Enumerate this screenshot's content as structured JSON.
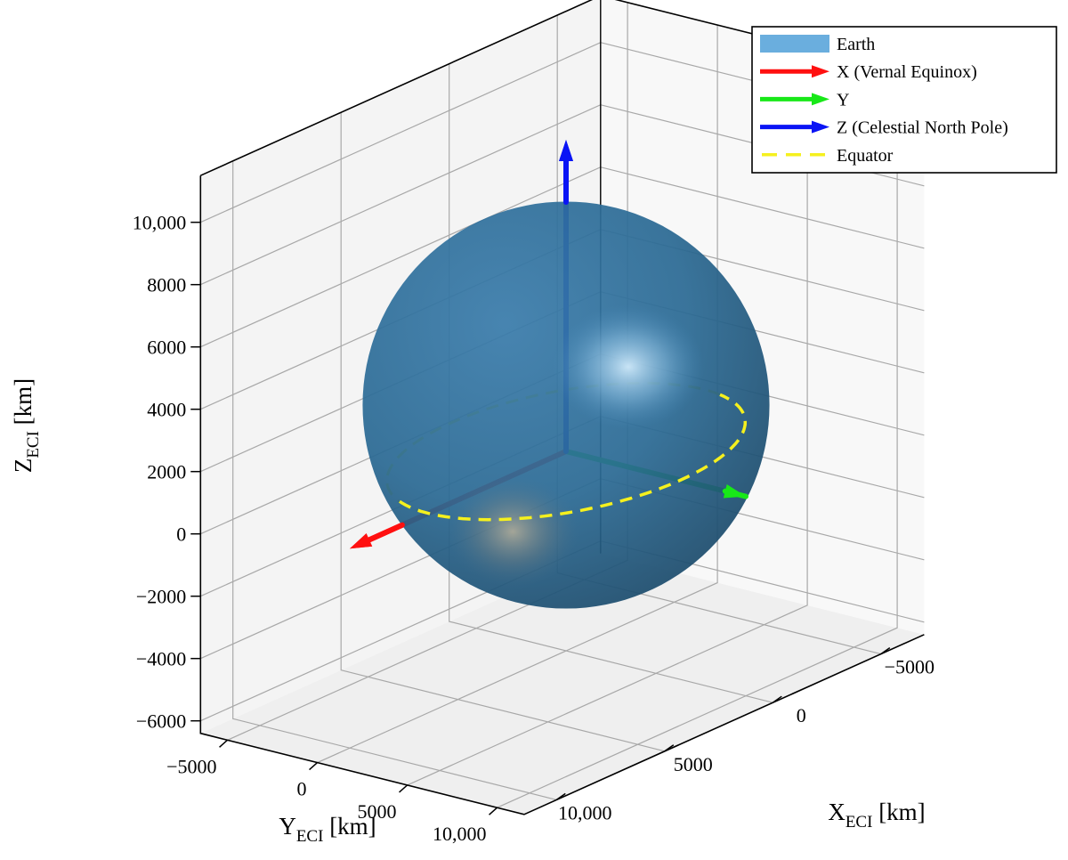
{
  "chart_data": {
    "type": "3d-line",
    "title": "",
    "axes": {
      "x": {
        "label": "X",
        "subscript": "ECI",
        "unit": "[km]",
        "ticks": [
          -5000,
          0,
          5000,
          10000
        ],
        "tick_labels": [
          "−5000",
          "0",
          "5000",
          "10,000"
        ],
        "range": [
          -7000,
          11500
        ]
      },
      "y": {
        "label": "Y",
        "subscript": "ECI",
        "unit": "[km]",
        "ticks": [
          -5000,
          0,
          5000,
          10000
        ],
        "tick_labels": [
          "−5000",
          "0",
          "5000",
          "10,000"
        ],
        "range": [
          -6500,
          11500
        ]
      },
      "z": {
        "label": "Z",
        "subscript": "ECI",
        "unit": "[km]",
        "ticks": [
          -6000,
          -4000,
          -2000,
          0,
          2000,
          4000,
          6000,
          8000,
          10000
        ],
        "tick_labels": [
          "−6000",
          "−4000",
          "−2000",
          "0",
          "2000",
          "4000",
          "6000",
          "8000",
          "10,000"
        ],
        "range": [
          -6400,
          11500
        ]
      }
    },
    "grid": true,
    "earth": {
      "name": "Earth",
      "radius_km": 6371,
      "color": "#2b6a94"
    },
    "series": [
      {
        "name": "X (Vernal Equinox)",
        "type": "arrow",
        "color": "#ff1010",
        "from": [
          0,
          0,
          0
        ],
        "to": [
          10000,
          0,
          0
        ]
      },
      {
        "name": "Y",
        "type": "arrow",
        "color": "#18e818",
        "from": [
          0,
          0,
          0
        ],
        "to": [
          0,
          10000,
          0
        ]
      },
      {
        "name": "Z (Celestial North Pole)",
        "type": "arrow",
        "color": "#0a14f5",
        "from": [
          0,
          0,
          0
        ],
        "to": [
          0,
          0,
          10000
        ]
      },
      {
        "name": "Equator",
        "type": "circle",
        "color": "#f5f01e",
        "dash": "dashed",
        "radius_km": 6371,
        "z_km": 0
      }
    ],
    "legend": {
      "position": "top-right",
      "entries": [
        {
          "label": "Earth",
          "color": "#6aaede",
          "marker": "patch"
        },
        {
          "label": "X (Vernal Equinox)",
          "color": "#ff1010",
          "marker": "arrow"
        },
        {
          "label": "Y",
          "color": "#18e818",
          "marker": "arrow"
        },
        {
          "label": "Z (Celestial North Pole)",
          "color": "#0a14f5",
          "marker": "arrow"
        },
        {
          "label": "Equator",
          "color": "#f5f01e",
          "marker": "dashed"
        }
      ]
    }
  }
}
